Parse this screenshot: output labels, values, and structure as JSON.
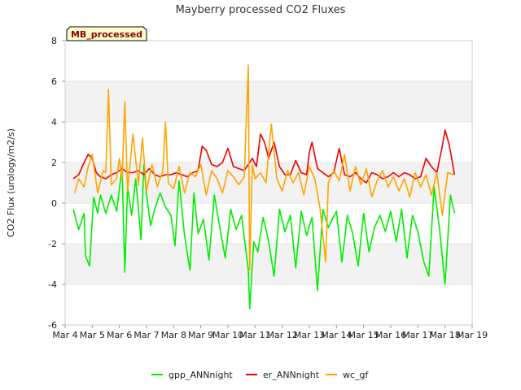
{
  "chart_data": {
    "type": "line",
    "title": "Mayberry processed CO2 Fluxes",
    "xlabel": "",
    "ylabel": "CO2 Flux (urology/m2/s)",
    "badge": "MB_processed",
    "xlim": [
      4,
      19
    ],
    "ylim": [
      -6,
      8
    ],
    "x_tick_labels": [
      "Mar 4",
      "Mar 5",
      "Mar 6",
      "Mar 7",
      "Mar 8",
      "Mar 9",
      "Mar 10",
      "Mar 11",
      "Mar 12",
      "Mar 13",
      "Mar 14",
      "Mar 15",
      "Mar 16",
      "Mar 17",
      "Mar 18",
      "Mar 19"
    ],
    "y_ticks": [
      -6,
      -4,
      -2,
      0,
      2,
      4,
      6,
      8
    ],
    "grid": "horizontal bands",
    "legend_position": "bottom-center",
    "series": [
      {
        "name": "gpp_ANNnight",
        "color": "#00ee00",
        "x": [
          4.3,
          4.5,
          4.7,
          4.75,
          4.9,
          5.05,
          5.2,
          5.3,
          5.5,
          5.7,
          5.9,
          6.1,
          6.2,
          6.3,
          6.45,
          6.6,
          6.8,
          6.9,
          7.0,
          7.15,
          7.3,
          7.5,
          7.7,
          7.9,
          8.05,
          8.2,
          8.4,
          8.6,
          8.75,
          8.9,
          9.1,
          9.3,
          9.5,
          9.7,
          9.9,
          10.1,
          10.3,
          10.5,
          10.75,
          10.8,
          10.95,
          11.1,
          11.3,
          11.5,
          11.7,
          11.9,
          12.1,
          12.3,
          12.5,
          12.7,
          12.9,
          13.1,
          13.3,
          13.5,
          13.7,
          13.8,
          14.0,
          14.2,
          14.4,
          14.6,
          14.8,
          15.0,
          15.2,
          15.4,
          15.6,
          15.8,
          16.0,
          16.2,
          16.4,
          16.6,
          16.8,
          17.0,
          17.2,
          17.4,
          17.6,
          17.8,
          18.0,
          18.2,
          18.35
        ],
        "y": [
          -0.3,
          -1.3,
          -0.5,
          -2.6,
          -3.1,
          0.3,
          -0.5,
          0.4,
          -0.5,
          0.4,
          -0.4,
          1.8,
          -3.4,
          0.8,
          -0.6,
          1.2,
          -1.8,
          1.9,
          0.4,
          -1.1,
          -0.3,
          0.5,
          -0.2,
          -0.6,
          -2.1,
          1.1,
          -1.6,
          -3.3,
          0.5,
          -1.5,
          -0.8,
          -2.8,
          0.4,
          -1.2,
          -2.7,
          -0.3,
          -1.3,
          -0.6,
          -3.3,
          -5.2,
          -1.9,
          -2.4,
          -0.7,
          -1.9,
          -3.6,
          -0.3,
          -1.4,
          -0.6,
          -3.2,
          -0.4,
          -1.6,
          -0.7,
          -4.3,
          -0.3,
          -1.2,
          -0.9,
          -0.4,
          -2.9,
          -0.6,
          -1.5,
          -3.1,
          -0.5,
          -2.4,
          -1.2,
          -0.6,
          -1.4,
          -0.4,
          -1.9,
          -0.3,
          -2.7,
          -0.6,
          -1.4,
          -2.8,
          -3.6,
          0.8,
          -1.3,
          -4.0,
          0.4,
          -0.5
        ]
      },
      {
        "name": "er_ANNnight",
        "color": "#ee0000",
        "x": [
          4.3,
          4.5,
          4.7,
          4.85,
          5.0,
          5.15,
          5.3,
          5.5,
          5.7,
          5.9,
          6.1,
          6.3,
          6.5,
          6.7,
          6.9,
          7.1,
          7.3,
          7.5,
          7.7,
          7.9,
          8.1,
          8.3,
          8.5,
          8.7,
          8.9,
          9.05,
          9.2,
          9.4,
          9.6,
          9.8,
          10.0,
          10.2,
          10.4,
          10.6,
          10.8,
          10.9,
          11.05,
          11.2,
          11.35,
          11.5,
          11.7,
          11.9,
          12.1,
          12.3,
          12.5,
          12.7,
          12.9,
          13.0,
          13.1,
          13.3,
          13.5,
          13.7,
          13.9,
          14.1,
          14.3,
          14.5,
          14.7,
          14.9,
          15.1,
          15.3,
          15.5,
          15.7,
          15.9,
          16.1,
          16.3,
          16.5,
          16.7,
          16.9,
          17.1,
          17.3,
          17.5,
          17.7,
          17.9,
          18.0,
          18.15,
          18.35
        ],
        "y": [
          1.2,
          1.4,
          2.0,
          2.4,
          2.2,
          1.5,
          1.3,
          1.2,
          1.4,
          1.5,
          1.7,
          1.5,
          1.5,
          1.6,
          1.4,
          1.7,
          1.4,
          1.3,
          1.4,
          1.4,
          1.5,
          1.4,
          1.3,
          1.5,
          1.6,
          2.8,
          2.6,
          1.9,
          1.8,
          2.0,
          2.7,
          1.8,
          1.7,
          1.6,
          2.0,
          2.2,
          1.8,
          3.4,
          3.0,
          2.2,
          3.0,
          1.8,
          1.4,
          1.4,
          2.1,
          1.5,
          1.4,
          2.5,
          3.0,
          1.7,
          1.5,
          1.3,
          1.5,
          2.7,
          1.4,
          1.3,
          1.5,
          1.2,
          1.0,
          1.5,
          1.4,
          1.2,
          1.3,
          1.5,
          1.3,
          1.5,
          1.4,
          1.2,
          1.3,
          2.2,
          1.8,
          1.5,
          2.8,
          3.6,
          2.9,
          1.4
        ]
      },
      {
        "name": "wc_gf",
        "color": "#ffa500",
        "x": [
          4.35,
          4.5,
          4.7,
          4.85,
          5.0,
          5.2,
          5.4,
          5.5,
          5.6,
          5.7,
          5.9,
          6.0,
          6.1,
          6.2,
          6.3,
          6.5,
          6.7,
          6.85,
          7.0,
          7.2,
          7.4,
          7.6,
          7.7,
          7.8,
          8.0,
          8.2,
          8.4,
          8.6,
          8.8,
          9.0,
          9.2,
          9.4,
          9.6,
          9.8,
          10.0,
          10.2,
          10.4,
          10.6,
          10.75,
          10.8,
          10.9,
          11.0,
          11.2,
          11.4,
          11.6,
          11.8,
          12.0,
          12.2,
          12.4,
          12.6,
          12.8,
          13.0,
          13.2,
          13.4,
          13.6,
          13.7,
          13.9,
          14.1,
          14.3,
          14.5,
          14.7,
          14.9,
          15.1,
          15.3,
          15.5,
          15.7,
          15.9,
          16.1,
          16.3,
          16.5,
          16.7,
          16.9,
          17.1,
          17.3,
          17.5,
          17.7,
          17.9,
          18.1,
          18.3
        ],
        "y": [
          0.5,
          1.2,
          0.8,
          1.8,
          2.4,
          0.5,
          1.6,
          1.5,
          5.6,
          0.9,
          1.2,
          2.2,
          1.2,
          5.0,
          0.6,
          3.4,
          0.9,
          3.2,
          0.6,
          1.9,
          0.8,
          1.6,
          4.0,
          1.0,
          0.7,
          1.8,
          0.5,
          1.5,
          1.3,
          1.9,
          0.4,
          1.6,
          1.2,
          0.5,
          1.6,
          1.3,
          0.9,
          1.3,
          6.8,
          -3.3,
          1.9,
          1.2,
          1.5,
          1.0,
          3.9,
          1.2,
          0.6,
          1.6,
          1.0,
          1.5,
          0.4,
          1.8,
          1.2,
          -0.3,
          -2.9,
          1.0,
          1.6,
          1.1,
          2.4,
          0.6,
          1.8,
          0.9,
          1.7,
          0.3,
          1.1,
          1.6,
          0.8,
          1.3,
          0.6,
          1.2,
          0.3,
          1.5,
          0.8,
          1.4,
          0.4,
          1.5,
          -0.6,
          1.5,
          1.4
        ]
      }
    ]
  }
}
